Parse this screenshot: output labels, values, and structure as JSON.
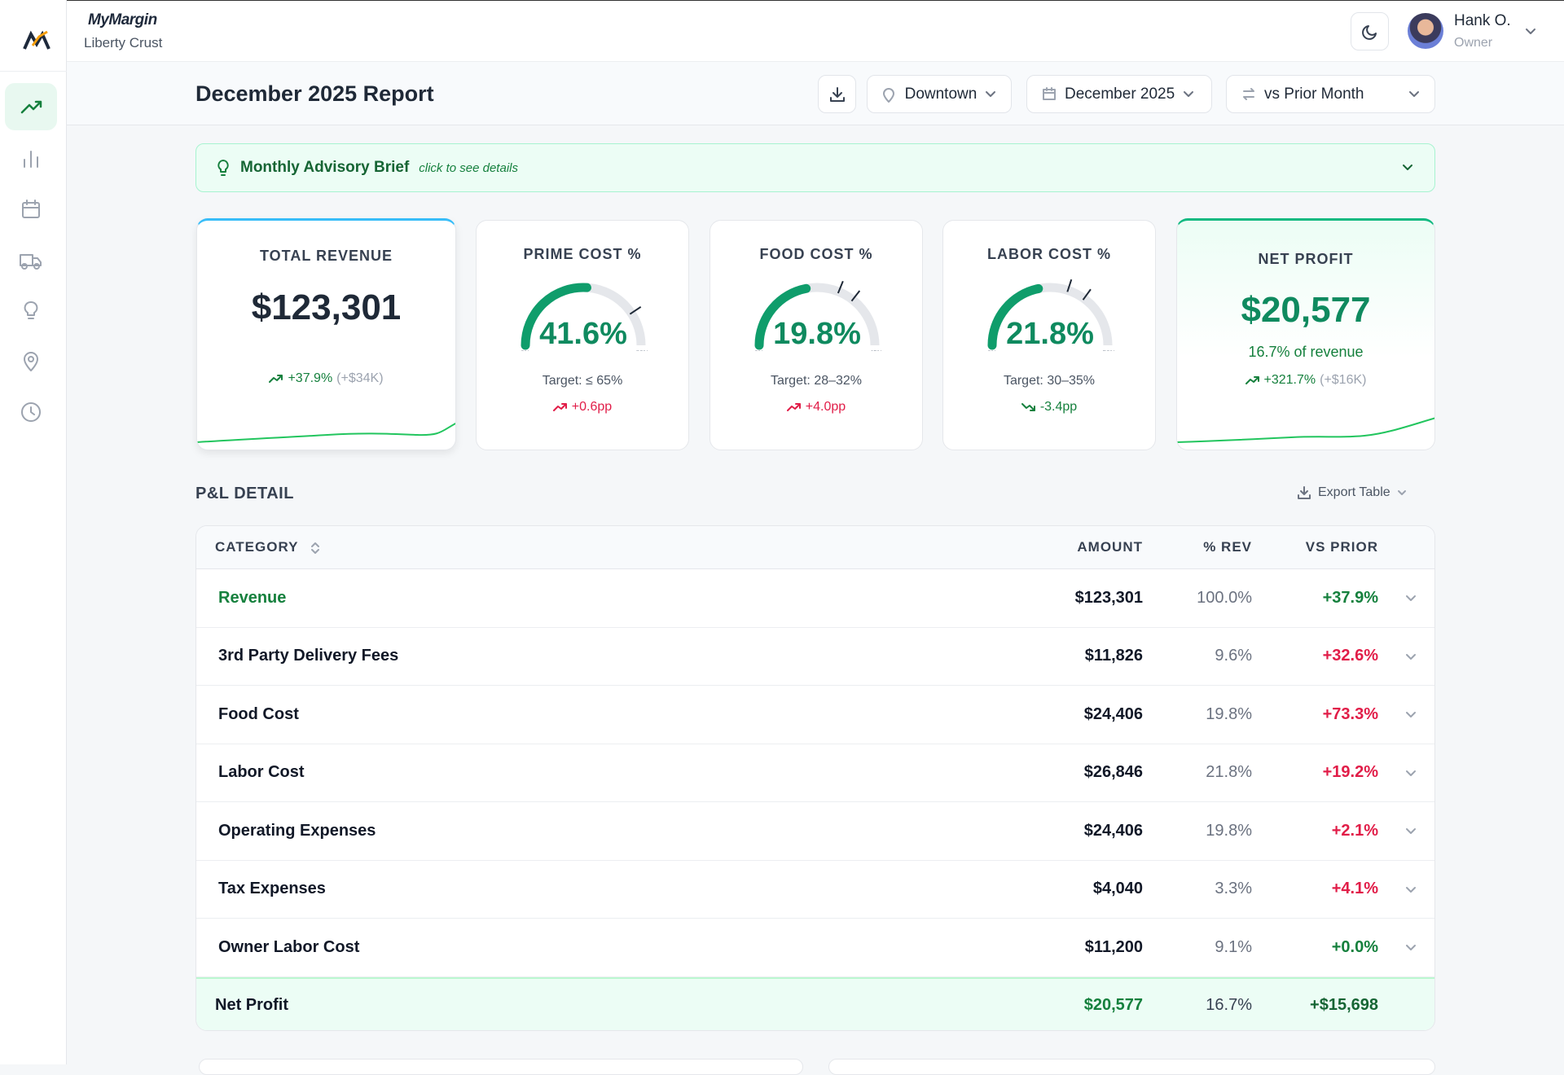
{
  "brand": {
    "name": "MyMargin",
    "location": "Liberty Crust"
  },
  "user": {
    "name": "Hank O.",
    "role": "Owner"
  },
  "report": {
    "title": "December 2025 Report",
    "filters": [
      "Downtown",
      "December 2025",
      "vs Prior Month"
    ]
  },
  "advisory": {
    "title": "Monthly Advisory Brief",
    "hint": "click to see details"
  },
  "revenue_card": {
    "label": "TOTAL REVENUE",
    "value": "$123,301",
    "change": "+37.9%",
    "delta": "(+$34K)"
  },
  "gauges": [
    {
      "label": "PRIME COST %",
      "value": 41.6,
      "value_label": "41.6%",
      "min": {
        "value": 0,
        "label": "0%"
      },
      "max": {
        "value": 80,
        "label": "80%+"
      },
      "targets": [
        65
      ],
      "target_text": "Target: ≤ 65%",
      "change": "+0.6pp",
      "change_color": "#e11d48"
    },
    {
      "label": "FOOD COST %",
      "value": 19.8,
      "value_label": "19.8%",
      "min": {
        "value": 0,
        "label": "0%"
      },
      "max": {
        "value": 45,
        "label": "45%+"
      },
      "targets": [
        28,
        32
      ],
      "target_text": "Target: 28–32%",
      "change": "+4.0pp",
      "change_color": "#e11d48"
    },
    {
      "label": "LABOR COST %",
      "value": 21.8,
      "value_label": "21.8%",
      "min": {
        "value": 0,
        "label": "0%"
      },
      "max": {
        "value": 50,
        "label": "50%+"
      },
      "targets": [
        30,
        35
      ],
      "target_text": "Target: 30–35%",
      "change": "-3.4pp",
      "change_color": "#15803d"
    }
  ],
  "profit_card": {
    "label": "NET PROFIT",
    "value": "$20,577",
    "subtitle": "16.7% of revenue",
    "change": "+321.7%",
    "delta": "(+$16K)"
  },
  "table": {
    "title": "P&L DETAIL",
    "export": "Export Table",
    "columns": [
      "CATEGORY",
      "AMOUNT",
      "% REV",
      "VS PRIOR"
    ],
    "rows": [
      {
        "category": "Revenue",
        "category_color": "#15803d",
        "amount": "$123,301",
        "pct_rev": "100.0%",
        "vs_prior": "+37.9%",
        "vs_prior_color": "#15803d"
      },
      {
        "category": "3rd Party Delivery Fees",
        "amount": "$11,826",
        "pct_rev": "9.6%",
        "vs_prior": "+32.6%",
        "vs_prior_color": "#e11d48"
      },
      {
        "category": "Food Cost",
        "amount": "$24,406",
        "pct_rev": "19.8%",
        "vs_prior": "+73.3%",
        "vs_prior_color": "#e11d48"
      },
      {
        "category": "Labor Cost",
        "amount": "$26,846",
        "pct_rev": "21.8%",
        "vs_prior": "+19.2%",
        "vs_prior_color": "#e11d48"
      },
      {
        "category": "Operating Expenses",
        "amount": "$24,406",
        "pct_rev": "19.8%",
        "vs_prior": "+2.1%",
        "vs_prior_color": "#e11d48"
      },
      {
        "category": "Tax Expenses",
        "amount": "$4,040",
        "pct_rev": "3.3%",
        "vs_prior": "+4.1%",
        "vs_prior_color": "#e11d48"
      },
      {
        "category": "Owner Labor Cost",
        "amount": "$11,200",
        "pct_rev": "9.1%",
        "vs_prior": "+0.0%",
        "vs_prior_color": "#15803d"
      }
    ],
    "footer": {
      "category": "Net Profit",
      "amount": "$20,577",
      "pct_rev": "16.7%",
      "vs_prior": "+$15,698"
    }
  }
}
